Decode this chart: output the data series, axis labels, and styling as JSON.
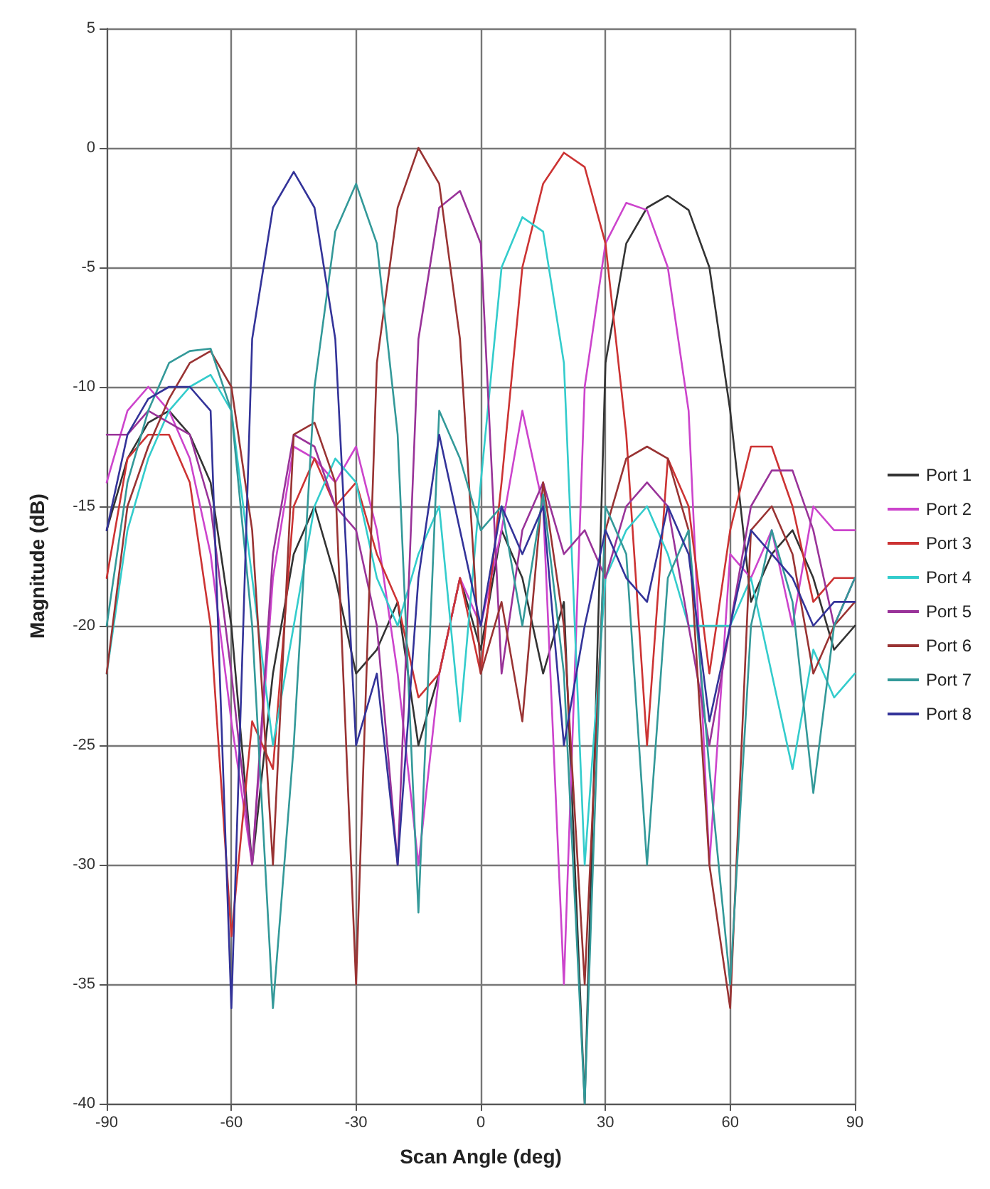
{
  "chart_data": {
    "type": "line",
    "xlabel": "Scan Angle (deg)",
    "ylabel": "Magnitude (dB)",
    "xlim": [
      -90,
      90
    ],
    "xticks": [
      -90,
      -60,
      -30,
      0,
      30,
      60,
      90
    ],
    "ylim": [
      -40,
      5
    ],
    "yticks": [
      -40,
      -35,
      -30,
      -25,
      -20,
      -15,
      -10,
      -5,
      0,
      5
    ],
    "grid": true,
    "legend": "right",
    "marker": "none",
    "line_style": "solid",
    "x": [
      -90,
      -85,
      -80,
      -75,
      -70,
      -65,
      -60,
      -55,
      -50,
      -45,
      -40,
      -35,
      -30,
      -25,
      -20,
      -15,
      -10,
      -5,
      0,
      5,
      10,
      15,
      20,
      25,
      30,
      35,
      40,
      45,
      50,
      55,
      60,
      65,
      70,
      75,
      80,
      85,
      90
    ],
    "series": [
      {
        "name": "Port 1",
        "color": "#333333",
        "values": [
          -16,
          -13,
          -11.5,
          -11,
          -12,
          -14,
          -20,
          -30,
          -22,
          -17,
          -15,
          -18,
          -22,
          -21,
          -19,
          -25,
          -22,
          -18,
          -21,
          -16,
          -18,
          -22,
          -19,
          -40,
          -9,
          -4,
          -2.5,
          -2,
          -2.6,
          -5,
          -11,
          -19,
          -17,
          -16,
          -18,
          -21,
          -20
        ]
      },
      {
        "name": "Port 2",
        "color": "#cc44cc",
        "values": [
          -14,
          -11,
          -10,
          -11,
          -13,
          -17,
          -24,
          -30,
          -18,
          -12.5,
          -13,
          -14,
          -12.5,
          -16,
          -22,
          -30,
          -22,
          -18,
          -20,
          -16,
          -11,
          -15,
          -35,
          -10,
          -4,
          -2.3,
          -2.6,
          -5,
          -11,
          -30,
          -17,
          -18,
          -16,
          -20,
          -15,
          -16,
          -16
        ]
      },
      {
        "name": "Port 3",
        "color": "#cc3333",
        "values": [
          -18,
          -13,
          -12,
          -12,
          -14,
          -20,
          -33,
          -24,
          -26,
          -15,
          -13,
          -15,
          -14,
          -17,
          -19,
          -23,
          -22,
          -18,
          -22,
          -14,
          -5,
          -1.5,
          -0.2,
          -0.8,
          -4,
          -12,
          -25,
          -13,
          -15,
          -22,
          -16,
          -12.5,
          -12.5,
          -15,
          -19,
          -18,
          -18
        ]
      },
      {
        "name": "Port 4",
        "color": "#33cccc",
        "values": [
          -22,
          -16,
          -13,
          -11,
          -10,
          -9.5,
          -11,
          -18,
          -25,
          -20,
          -15,
          -13,
          -14,
          -18,
          -20,
          -17,
          -15,
          -24,
          -14,
          -5,
          -2.9,
          -3.5,
          -9,
          -30,
          -18,
          -16,
          -15,
          -17,
          -20,
          -20,
          -20,
          -18,
          -22,
          -26,
          -21,
          -23,
          -22
        ]
      },
      {
        "name": "Port 5",
        "color": "#993399",
        "values": [
          -12,
          -12,
          -11,
          -11.5,
          -12,
          -15,
          -22,
          -30,
          -17,
          -12,
          -12.5,
          -15,
          -16,
          -20,
          -30,
          -8,
          -2.5,
          -1.8,
          -4,
          -22,
          -16,
          -14,
          -17,
          -16,
          -18,
          -15,
          -14,
          -15,
          -20,
          -25,
          -20,
          -15,
          -13.5,
          -13.5,
          -16,
          -20,
          -18
        ]
      },
      {
        "name": "Port 6",
        "color": "#993333",
        "values": [
          -22,
          -15,
          -12.5,
          -10.5,
          -9,
          -8.5,
          -10,
          -16,
          -30,
          -12,
          -11.5,
          -14,
          -35,
          -9,
          -2.5,
          0,
          -1.5,
          -8,
          -22,
          -19,
          -24,
          -14,
          -20,
          -35,
          -16,
          -13,
          -12.5,
          -13,
          -16,
          -30,
          -36,
          -16,
          -15,
          -17,
          -22,
          -20,
          -19
        ]
      },
      {
        "name": "Port 7",
        "color": "#339999",
        "values": [
          -20,
          -14,
          -11,
          -9,
          -8.5,
          -8.4,
          -11,
          -20,
          -36,
          -25,
          -10,
          -3.5,
          -1.5,
          -4,
          -12,
          -32,
          -11,
          -13,
          -16,
          -15,
          -20,
          -14.5,
          -22,
          -40,
          -15,
          -17,
          -30,
          -18,
          -16,
          -26,
          -35,
          -20,
          -16,
          -19,
          -27,
          -20,
          -18
        ]
      },
      {
        "name": "Port 8",
        "color": "#333399",
        "values": [
          -16,
          -12,
          -10.5,
          -10,
          -10,
          -11,
          -36,
          -8,
          -2.5,
          -1,
          -2.5,
          -8,
          -25,
          -22,
          -30,
          -18,
          -12,
          -16,
          -20,
          -15,
          -17,
          -15,
          -25,
          -20,
          -16,
          -18,
          -19,
          -15,
          -17,
          -24,
          -20,
          -16,
          -17,
          -18,
          -20,
          -19,
          -19
        ]
      }
    ]
  }
}
